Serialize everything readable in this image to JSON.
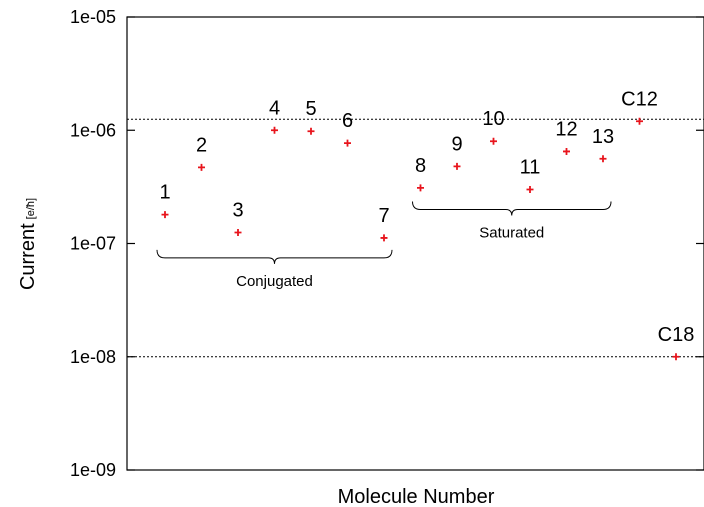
{
  "chart_data": {
    "type": "scatter",
    "xlabel": "Molecule Number",
    "ylabel": "Current",
    "ylabel_unit": "[e/ħ]",
    "yscale": "log",
    "ylim": [
      1e-09,
      1e-05
    ],
    "yticks": [
      "1e-09",
      "1e-08",
      "1e-07",
      "1e-06",
      "1e-05"
    ],
    "grid": false,
    "reference_lines": [
      1.25e-06,
      1e-08
    ],
    "marker_color": "#e8141c",
    "points": [
      {
        "label": "1",
        "x": 1,
        "y": 1.8e-07
      },
      {
        "label": "2",
        "x": 2,
        "y": 4.7e-07
      },
      {
        "label": "3",
        "x": 3,
        "y": 1.25e-07
      },
      {
        "label": "4",
        "x": 4,
        "y": 1e-06
      },
      {
        "label": "5",
        "x": 5,
        "y": 9.8e-07
      },
      {
        "label": "6",
        "x": 6,
        "y": 7.7e-07
      },
      {
        "label": "7",
        "x": 7,
        "y": 1.12e-07
      },
      {
        "label": "8",
        "x": 8,
        "y": 3.1e-07
      },
      {
        "label": "9",
        "x": 9,
        "y": 4.8e-07
      },
      {
        "label": "10",
        "x": 10,
        "y": 8e-07
      },
      {
        "label": "11",
        "x": 11,
        "y": 3e-07
      },
      {
        "label": "12",
        "x": 12,
        "y": 6.5e-07
      },
      {
        "label": "13",
        "x": 13,
        "y": 5.6e-07
      },
      {
        "label": "C12",
        "x": 14,
        "y": 1.2e-06
      },
      {
        "label": "C18",
        "x": 15,
        "y": 1e-08
      }
    ],
    "groups": [
      {
        "label": "Conjugated",
        "from": 1,
        "to": 7
      },
      {
        "label": "Saturated",
        "from": 8,
        "to": 13
      }
    ]
  }
}
